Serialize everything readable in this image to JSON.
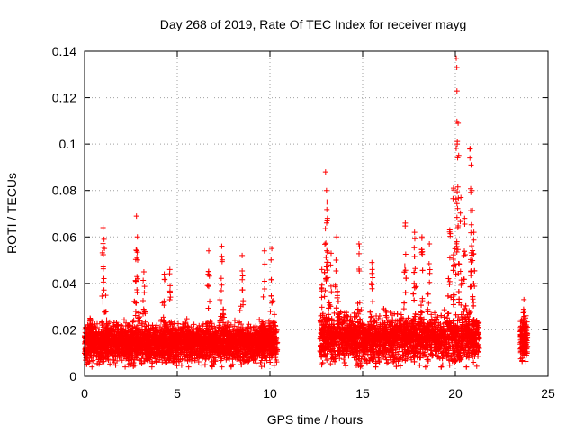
{
  "chart_data": {
    "type": "scatter",
    "title": "Day 268 of 2019, Rate Of TEC Index for receiver mayg",
    "xlabel": "GPS time / hours",
    "ylabel": "ROTI / TECUs",
    "xlim": [
      0,
      25
    ],
    "ylim": [
      0,
      0.14
    ],
    "xticks": [
      0,
      5,
      10,
      15,
      20,
      25
    ],
    "xtick_labels": [
      "0",
      "5",
      "10",
      "15",
      "20",
      "25"
    ],
    "yticks": [
      0,
      0.02,
      0.04,
      0.06,
      0.08,
      0.1,
      0.12,
      0.14
    ],
    "ytick_labels": [
      "0",
      "0.02",
      "0.04",
      "0.06",
      "0.08",
      "0.1",
      "0.12",
      "0.14"
    ],
    "grid": true,
    "marker": "+",
    "color": "#ff0000",
    "segments": [
      {
        "start": 0.0,
        "end": 10.4,
        "base": 0.014,
        "spread": 0.008
      },
      {
        "start": 12.7,
        "end": 21.3,
        "base": 0.016,
        "spread": 0.01
      },
      {
        "start": 23.5,
        "end": 23.9,
        "base": 0.016,
        "spread": 0.008
      }
    ],
    "series": [
      {
        "name": "ROTI",
        "peaks": [
          {
            "x": 0.3,
            "y": 0.025
          },
          {
            "x": 1.0,
            "y": 0.064
          },
          {
            "x": 1.05,
            "y": 0.059
          },
          {
            "x": 2.8,
            "y": 0.069
          },
          {
            "x": 2.85,
            "y": 0.06
          },
          {
            "x": 3.2,
            "y": 0.045
          },
          {
            "x": 4.3,
            "y": 0.044
          },
          {
            "x": 4.6,
            "y": 0.046
          },
          {
            "x": 6.7,
            "y": 0.054
          },
          {
            "x": 7.4,
            "y": 0.056
          },
          {
            "x": 8.5,
            "y": 0.052
          },
          {
            "x": 9.7,
            "y": 0.054
          },
          {
            "x": 10.1,
            "y": 0.055
          },
          {
            "x": 12.8,
            "y": 0.046
          },
          {
            "x": 13.0,
            "y": 0.088
          },
          {
            "x": 13.05,
            "y": 0.08
          },
          {
            "x": 13.1,
            "y": 0.068
          },
          {
            "x": 13.3,
            "y": 0.053
          },
          {
            "x": 13.6,
            "y": 0.06
          },
          {
            "x": 14.8,
            "y": 0.057
          },
          {
            "x": 15.5,
            "y": 0.049
          },
          {
            "x": 17.3,
            "y": 0.066
          },
          {
            "x": 17.8,
            "y": 0.062
          },
          {
            "x": 18.2,
            "y": 0.06
          },
          {
            "x": 18.6,
            "y": 0.057
          },
          {
            "x": 19.7,
            "y": 0.063
          },
          {
            "x": 19.9,
            "y": 0.081
          },
          {
            "x": 20.05,
            "y": 0.137
          },
          {
            "x": 20.08,
            "y": 0.133
          },
          {
            "x": 20.15,
            "y": 0.109
          },
          {
            "x": 20.1,
            "y": 0.1
          },
          {
            "x": 20.3,
            "y": 0.077
          },
          {
            "x": 20.5,
            "y": 0.068
          },
          {
            "x": 20.8,
            "y": 0.098
          },
          {
            "x": 20.85,
            "y": 0.091
          },
          {
            "x": 20.9,
            "y": 0.08
          },
          {
            "x": 21.0,
            "y": 0.062
          },
          {
            "x": 23.7,
            "y": 0.033
          }
        ]
      }
    ]
  }
}
